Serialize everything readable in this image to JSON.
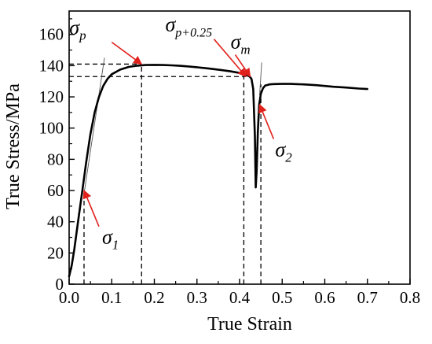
{
  "chart_data": {
    "type": "line",
    "xlabel": "True Strain",
    "ylabel": "True Stress/MPa",
    "xlim": [
      0.0,
      0.8
    ],
    "ylim": [
      0,
      175
    ],
    "xticks": [
      0.0,
      0.1,
      0.2,
      0.3,
      0.4,
      0.5,
      0.6,
      0.7,
      0.8
    ],
    "xtick_labels": [
      "0.0",
      "0.1",
      "0.2",
      "0.3",
      "0.4",
      "0.5",
      "0.6",
      "0.7",
      "0.8"
    ],
    "yticks": [
      0,
      20,
      40,
      60,
      80,
      100,
      120,
      140,
      160
    ],
    "ytick_labels": [
      "0",
      "20",
      "40",
      "60",
      "80",
      "100",
      "120",
      "140",
      "160"
    ],
    "grid": false,
    "legend": "none",
    "series": [
      {
        "color": "#000000",
        "x": [
          0.0,
          0.006,
          0.012,
          0.02,
          0.03,
          0.04,
          0.05,
          0.06,
          0.07,
          0.08,
          0.09,
          0.1,
          0.12,
          0.14,
          0.16,
          0.18,
          0.2,
          0.22,
          0.24,
          0.26,
          0.28,
          0.3,
          0.32,
          0.34,
          0.36,
          0.38,
          0.4,
          0.41,
          0.418,
          0.424,
          0.428,
          0.432,
          0.436,
          0.438,
          0.44,
          0.443,
          0.446,
          0.45,
          0.455,
          0.46,
          0.47,
          0.48,
          0.5,
          0.52,
          0.55,
          0.58,
          0.6,
          0.62,
          0.65,
          0.68,
          0.7
        ],
        "y": [
          5,
          12,
          22,
          38,
          58,
          78,
          96,
          110,
          120,
          127,
          131.5,
          134.5,
          137.5,
          139.2,
          140,
          140.4,
          140.5,
          140.4,
          140.2,
          139.9,
          139.5,
          139,
          138.4,
          137.8,
          137.1,
          136.3,
          135.3,
          134.6,
          133.8,
          133,
          131.5,
          125,
          95,
          62,
          72,
          98,
          115,
          122,
          125.5,
          127.2,
          128,
          128.2,
          128.3,
          128.3,
          128,
          127.5,
          127,
          126.5,
          126,
          125.3,
          125
        ]
      }
    ],
    "reference_lines": [
      {
        "kind": "dashed-horizontal",
        "y": 141,
        "x_end": 0.17
      },
      {
        "kind": "dashed-horizontal",
        "y": 133,
        "x_end": 0.415
      },
      {
        "kind": "dashed-vertical",
        "x": 0.035,
        "y_end": 60
      },
      {
        "kind": "dashed-vertical",
        "x": 0.17,
        "y_end": 141
      },
      {
        "kind": "dashed-vertical",
        "x": 0.41,
        "y_end": 133
      },
      {
        "kind": "dashed-vertical",
        "x": 0.45,
        "y_end": 128
      }
    ],
    "offset_lines": [
      {
        "color": "#555555",
        "x": [
          0.035,
          0.083
        ],
        "y": [
          58,
          145
        ]
      },
      {
        "color": "#555555",
        "x": [
          0.447,
          0.452
        ],
        "y": [
          121,
          142
        ]
      }
    ],
    "annotations": [
      {
        "symbol": "σ",
        "sub": "p",
        "arrow_color": "#e0201b",
        "point": [
          0.17,
          141
        ],
        "arrow_tail": [
          0.1,
          155
        ]
      },
      {
        "symbol": "σ",
        "sub": "p+0.25",
        "arrow_color": "#e0201b",
        "point": [
          0.415,
          133
        ],
        "arrow_tail": [
          0.34,
          157
        ]
      },
      {
        "symbol": "σ",
        "sub": "m",
        "arrow_color": "#e0201b",
        "point": [
          0.425,
          133
        ],
        "arrow_tail": [
          0.39,
          147
        ]
      },
      {
        "symbol": "σ",
        "sub": "1",
        "arrow_color": "#e0201b",
        "point": [
          0.035,
          60
        ],
        "arrow_tail": [
          0.07,
          37
        ]
      },
      {
        "symbol": "σ",
        "sub": "2",
        "arrow_color": "#e0201b",
        "point": [
          0.447,
          115
        ],
        "arrow_tail": [
          0.48,
          93
        ]
      }
    ]
  }
}
